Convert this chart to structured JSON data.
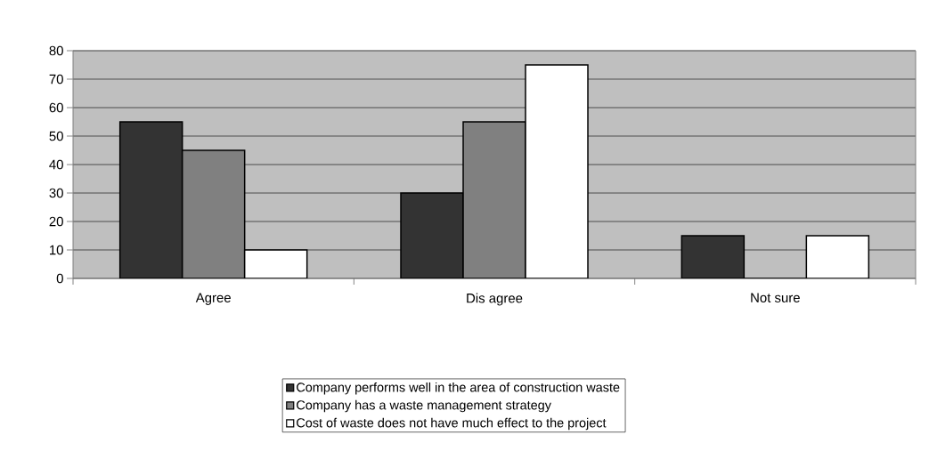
{
  "chart_data": {
    "type": "bar",
    "categories": [
      "Agree",
      "Dis agree",
      "Not sure"
    ],
    "series": [
      {
        "name": "Company performs well in the area of construction waste",
        "color": "#333333",
        "values": [
          55,
          30,
          15
        ]
      },
      {
        "name": "Company has a waste management strategy",
        "color": "#808080",
        "values": [
          45,
          55,
          0
        ]
      },
      {
        "name": "Cost of waste does not have much effect to the project",
        "color": "#ffffff",
        "values": [
          10,
          75,
          15
        ]
      }
    ],
    "ylim": [
      0,
      80
    ],
    "yticks": [
      0,
      10,
      20,
      30,
      40,
      50,
      60,
      70,
      80
    ],
    "grid": "y",
    "legend": "bottom"
  }
}
